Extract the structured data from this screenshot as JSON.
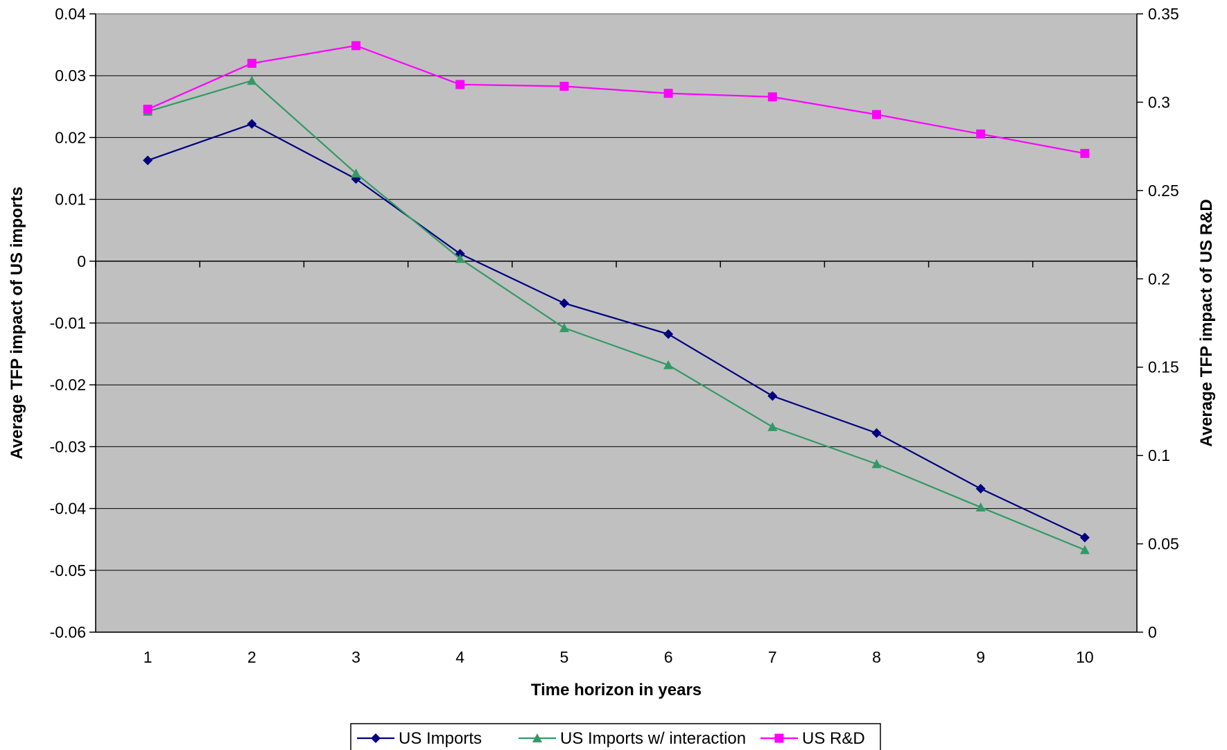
{
  "chart_data": {
    "type": "line",
    "title": "",
    "xlabel": "Time horizon in years",
    "ylabel_left": "Average TFP impact of US imports",
    "ylabel_right": "Average TFP impact of US R&D",
    "categories": [
      "1",
      "2",
      "3",
      "4",
      "5",
      "6",
      "7",
      "8",
      "9",
      "10"
    ],
    "ylim_left": [
      -0.06,
      0.04
    ],
    "yticks_left": [
      "0.04",
      "0.03",
      "0.02",
      "0.01",
      "0",
      "-0.01",
      "-0.02",
      "-0.03",
      "-0.04",
      "-0.05",
      "-0.06"
    ],
    "ylim_right": [
      0,
      0.35
    ],
    "yticks_right": [
      "0.35",
      "0.3",
      "0.25",
      "0.2",
      "0.15",
      "0.1",
      "0.05",
      "0"
    ],
    "grid": true,
    "legend_position": "bottom",
    "series": [
      {
        "name": "US Imports",
        "axis": "left",
        "color": "#000080",
        "marker": "diamond",
        "values": [
          0.0163,
          0.0222,
          0.0133,
          0.0012,
          -0.0068,
          -0.0118,
          -0.0218,
          -0.0278,
          -0.0368,
          -0.0447
        ]
      },
      {
        "name": "US Imports w/ interaction",
        "axis": "left",
        "color": "#339966",
        "marker": "triangle",
        "values": [
          0.0242,
          0.0292,
          0.0142,
          0.0004,
          -0.0108,
          -0.0168,
          -0.0268,
          -0.0328,
          -0.0398,
          -0.0467
        ]
      },
      {
        "name": "US R&D",
        "axis": "right",
        "color": "#ff00ff",
        "marker": "square",
        "values": [
          0.296,
          0.322,
          0.332,
          0.31,
          0.309,
          0.305,
          0.303,
          0.293,
          0.282,
          0.271
        ]
      }
    ]
  }
}
